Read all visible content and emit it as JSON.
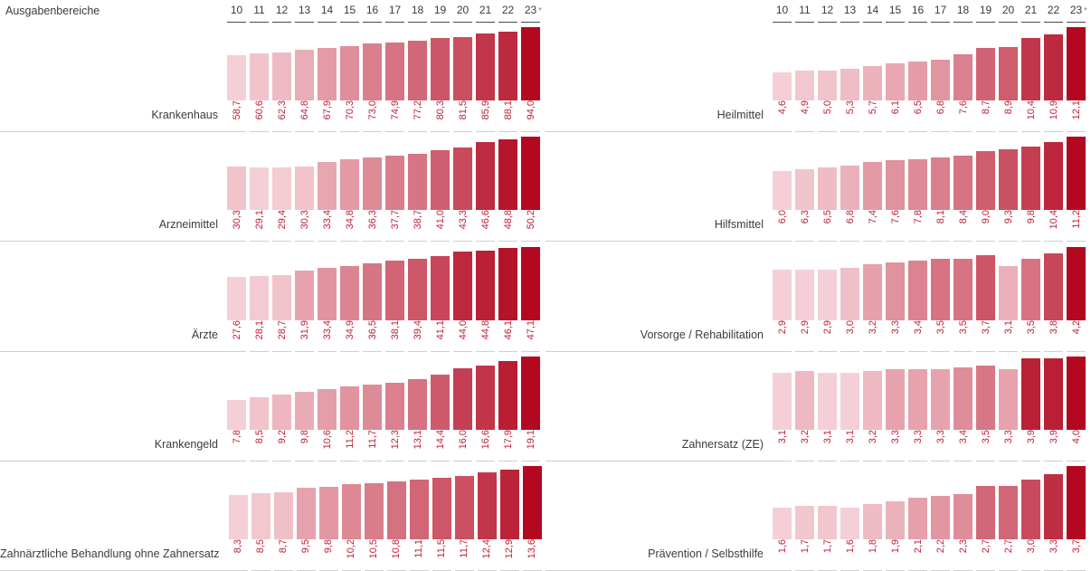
{
  "header": {
    "label": "Ausgabenbereiche"
  },
  "icons": {
    "sort_desc": "▼"
  },
  "colors": {
    "background": "#ffffff",
    "bar_color_min": "#f5cfd6",
    "bar_color_max": "#b20921",
    "value_label": "#c02038",
    "category_label": "#3c3c3c",
    "year_label": "#3a3a3a",
    "year_underline": "#4a4a4a",
    "row_separator": "#cfcfcf",
    "sort_icon": "#a0a0a0"
  },
  "chart_data": {
    "type": "bar",
    "title": "Ausgabenbereiche",
    "categories": [
      "10",
      "11",
      "12",
      "13",
      "14",
      "15",
      "16",
      "17",
      "18",
      "19",
      "20",
      "21",
      "22",
      "23"
    ],
    "sort": {
      "column": "23",
      "direction": "desc",
      "icon": "▼"
    },
    "value_format": "decimal-comma, 1 fraction digit",
    "layout": {
      "grid": false,
      "legend": false,
      "bar_value_labels": "rotated 90°, reading bottom-to-top, below bars",
      "scale": "per-row, zero-based bar heights; per-row linear color ramp min→max"
    },
    "panels": [
      {
        "rows": [
          {
            "label": "Krankenhaus",
            "values": [
              58.7,
              60.6,
              62.3,
              64.8,
              67.9,
              70.3,
              73.0,
              74.9,
              77.2,
              80.3,
              81.5,
              85.9,
              88.1,
              94.0
            ]
          },
          {
            "label": "Arzneimittel",
            "values": [
              30.3,
              29.1,
              29.4,
              30.3,
              33.4,
              34.8,
              36.3,
              37.7,
              38.7,
              41.0,
              43.3,
              46.6,
              48.8,
              50.2
            ]
          },
          {
            "label": "Ärzte",
            "values": [
              27.6,
              28.1,
              28.7,
              31.9,
              33.4,
              34.9,
              36.5,
              38.1,
              39.4,
              41.1,
              44.0,
              44.8,
              46.1,
              47.1
            ]
          },
          {
            "label": "Krankengeld",
            "values": [
              7.8,
              8.5,
              9.2,
              9.8,
              10.6,
              11.2,
              11.7,
              12.3,
              13.1,
              14.4,
              16.0,
              16.6,
              17.9,
              19.1
            ]
          },
          {
            "label": "Zahnärztliche Behandlung ohne Zahnersatz",
            "values": [
              8.3,
              8.5,
              8.7,
              9.5,
              9.8,
              10.2,
              10.5,
              10.8,
              11.1,
              11.5,
              11.7,
              12.4,
              12.9,
              13.6
            ]
          }
        ]
      },
      {
        "rows": [
          {
            "label": "Heilmittel",
            "values": [
              4.6,
              4.9,
              5.0,
              5.3,
              5.7,
              6.1,
              6.5,
              6.8,
              7.6,
              8.7,
              8.9,
              10.4,
              10.9,
              12.1
            ]
          },
          {
            "label": "Hilfsmittel",
            "values": [
              6.0,
              6.3,
              6.5,
              6.8,
              7.4,
              7.6,
              7.8,
              8.1,
              8.4,
              9.0,
              9.3,
              9.8,
              10.4,
              11.2
            ]
          },
          {
            "label": "Vorsorge / Rehabilitation",
            "values": [
              2.9,
              2.9,
              2.9,
              3.0,
              3.2,
              3.3,
              3.4,
              3.5,
              3.5,
              3.7,
              3.1,
              3.5,
              3.8,
              4.2
            ]
          },
          {
            "label": "Zahnersatz (ZE)",
            "values": [
              3.1,
              3.2,
              3.1,
              3.1,
              3.2,
              3.3,
              3.3,
              3.3,
              3.4,
              3.5,
              3.3,
              3.9,
              3.9,
              4.0
            ]
          },
          {
            "label": "Prävention / Selbsthilfe",
            "values": [
              1.6,
              1.7,
              1.7,
              1.6,
              1.8,
              1.9,
              2.1,
              2.2,
              2.3,
              2.7,
              2.7,
              3.0,
              3.3,
              3.7
            ]
          }
        ]
      }
    ]
  }
}
